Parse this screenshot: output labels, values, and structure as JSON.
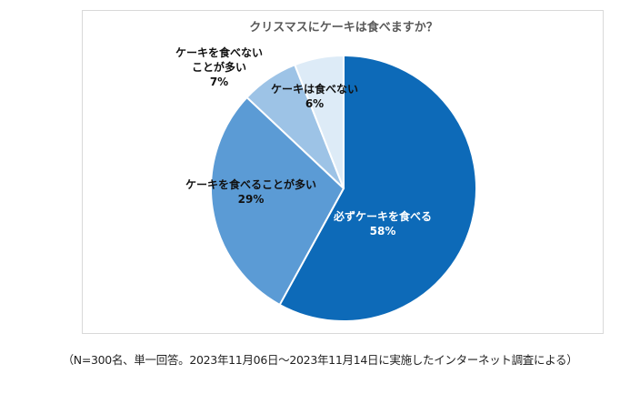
{
  "chart_data": {
    "type": "pie",
    "title": "クリスマスにケーキは食べますか？",
    "slices": [
      {
        "label": "必ずケーキを食べる",
        "value": 58,
        "value_label": "58%",
        "color": "#0d6ab8",
        "label_color": "#ffffff"
      },
      {
        "label": "ケーキを食べることが多い",
        "value": 29,
        "value_label": "29%",
        "color": "#5b9bd5",
        "label_color": "#111111"
      },
      {
        "label": "ケーキを食べないことが多い",
        "label_lines": [
          "ケーキを食べない",
          "ことが多い"
        ],
        "value": 7,
        "value_label": "7%",
        "color": "#9dc3e6",
        "label_color": "#111111"
      },
      {
        "label": "ケーキは食べない",
        "value": 6,
        "value_label": "6%",
        "color": "#ddebf7",
        "label_color": "#111111"
      }
    ]
  },
  "footnote": "（N=300名、単一回答。2023年11月06日〜2023年11月14日に実施したインターネット調査による）"
}
